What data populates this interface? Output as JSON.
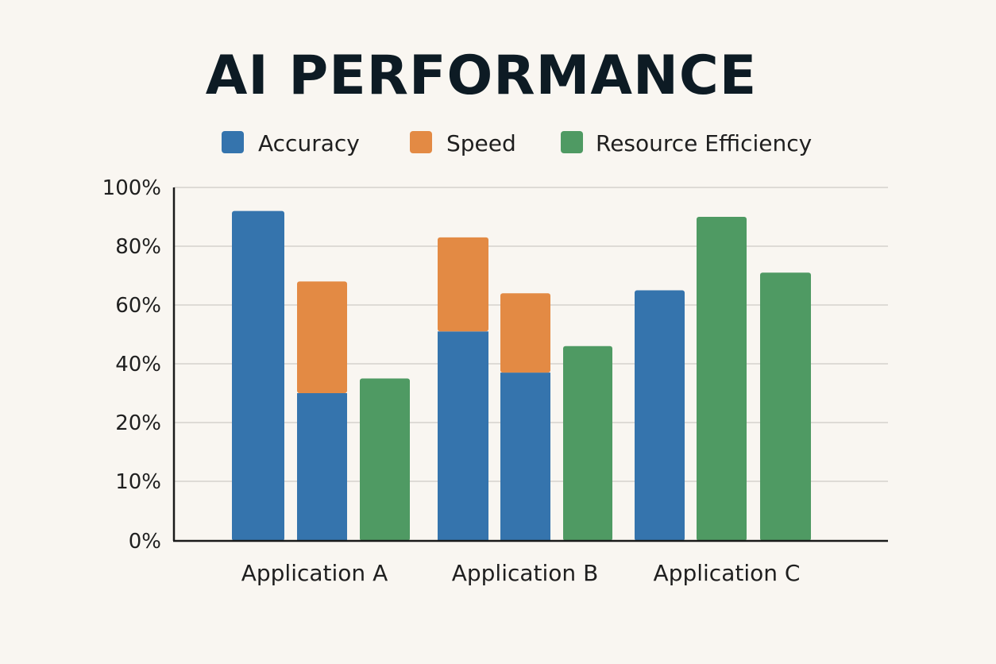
{
  "chart_data": {
    "type": "bar",
    "title": "AI PERFORMANCE",
    "xlabel": "",
    "ylabel": "",
    "ylim": [
      0,
      100
    ],
    "y_ticks": [
      "0%",
      "10%",
      "20%",
      "40%",
      "60%",
      "80%",
      "100%"
    ],
    "grid": true,
    "legend_position": "top",
    "categories": [
      "Application A",
      "Application B",
      "Application C"
    ],
    "legend": [
      {
        "name": "Accuracy",
        "color": "#3574ad"
      },
      {
        "name": "Speed",
        "color": "#e38a44"
      },
      {
        "name": "Resource Efficiency",
        "color": "#4f9a63"
      }
    ],
    "bars": [
      {
        "category": "Application A",
        "segments": [
          {
            "series": "Accuracy",
            "value": 92
          }
        ]
      },
      {
        "category": "Application A",
        "segments": [
          {
            "series": "Accuracy",
            "value": 30
          },
          {
            "series": "Speed",
            "value": 38
          }
        ]
      },
      {
        "category": "Application A",
        "segments": [
          {
            "series": "Resource Efficiency",
            "value": 35
          }
        ]
      },
      {
        "category": "Application B",
        "segments": [
          {
            "series": "Accuracy",
            "value": 51
          },
          {
            "series": "Speed",
            "value": 32
          }
        ]
      },
      {
        "category": "Application B",
        "segments": [
          {
            "series": "Accuracy",
            "value": 37
          },
          {
            "series": "Speed",
            "value": 27
          }
        ]
      },
      {
        "category": "Application B",
        "segments": [
          {
            "series": "Resource Efficiency",
            "value": 46
          }
        ]
      },
      {
        "category": "Application C",
        "segments": [
          {
            "series": "Accuracy",
            "value": 65
          }
        ]
      },
      {
        "category": "Application C",
        "segments": [
          {
            "series": "Resource Efficiency",
            "value": 90
          }
        ]
      },
      {
        "category": "Application C",
        "segments": [
          {
            "series": "Resource Efficiency",
            "value": 71
          }
        ]
      }
    ]
  }
}
